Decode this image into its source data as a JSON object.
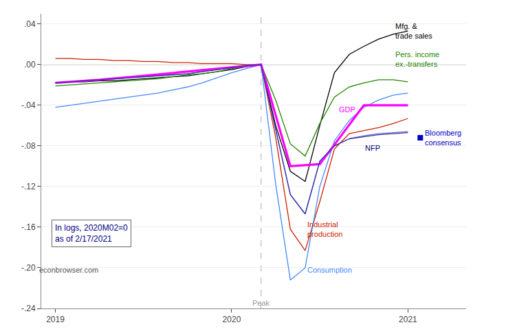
{
  "chart_data": {
    "type": "line",
    "xlim": [
      2018.92,
      2021.33
    ],
    "ylim": [
      -0.24,
      0.05
    ],
    "xticks": [
      2019.0,
      2020.0,
      2021.0
    ],
    "yticks": [
      {
        "value": 0.04,
        "label": ".04"
      },
      {
        "value": 0.0,
        "label": ".00"
      },
      {
        "value": -0.04,
        "label": "-.04"
      },
      {
        "value": -0.08,
        "label": "-.08"
      },
      {
        "value": -0.12,
        "label": "-.12"
      },
      {
        "value": -0.16,
        "label": "-.16"
      },
      {
        "value": -0.2,
        "label": "-.20"
      },
      {
        "value": -0.24,
        "label": "-.24"
      }
    ],
    "grid": "y",
    "series": [
      {
        "color": "#cc2200",
        "x": [
          2019.0,
          2019.083,
          2019.167,
          2019.25,
          2019.333,
          2019.417,
          2019.5,
          2019.583,
          2019.667,
          2019.75,
          2019.833,
          2019.917,
          2020.0,
          2020.083,
          2020.167,
          2020.25,
          2020.333,
          2020.417,
          2020.5,
          2020.583,
          2020.667,
          2020.75,
          2020.833,
          2020.917,
          2021.0
        ],
        "values": [
          0.006,
          0.006,
          0.005,
          0.005,
          0.004,
          0.004,
          0.003,
          0.003,
          0.002,
          0.002,
          0.001,
          0.001,
          0.001,
          0.0,
          0.0,
          -0.072,
          -0.162,
          -0.183,
          -0.135,
          -0.083,
          -0.068,
          -0.065,
          -0.062,
          -0.058,
          -0.053
        ]
      },
      {
        "color": "#4488ff",
        "x": [
          2019.0,
          2019.083,
          2019.167,
          2019.25,
          2019.333,
          2019.417,
          2019.5,
          2019.583,
          2019.667,
          2019.75,
          2019.833,
          2019.917,
          2020.0,
          2020.083,
          2020.167,
          2020.25,
          2020.333,
          2020.417,
          2020.5,
          2020.583,
          2020.667,
          2020.75,
          2020.833,
          2020.917,
          2021.0
        ],
        "values": [
          -0.042,
          -0.04,
          -0.038,
          -0.036,
          -0.034,
          -0.032,
          -0.03,
          -0.028,
          -0.025,
          -0.022,
          -0.018,
          -0.013,
          -0.008,
          -0.004,
          0.0,
          -0.118,
          -0.212,
          -0.2,
          -0.12,
          -0.075,
          -0.055,
          -0.042,
          -0.035,
          -0.03,
          -0.028
        ]
      },
      {
        "color": "#7070bb",
        "x": [
          2019.0,
          2019.083,
          2019.167,
          2019.25,
          2019.333,
          2019.417,
          2019.5,
          2019.583,
          2019.667,
          2019.75,
          2019.833,
          2019.917,
          2020.0,
          2020.083,
          2020.167,
          2020.25,
          2020.333,
          2020.417,
          2020.5,
          2020.583,
          2020.667,
          2020.75,
          2020.833,
          2020.917,
          2021.0
        ],
        "values": [
          -0.018,
          -0.017,
          -0.016,
          -0.015,
          -0.014,
          -0.013,
          -0.012,
          -0.011,
          -0.01,
          -0.009,
          -0.007,
          -0.005,
          -0.003,
          -0.001,
          0.0,
          -0.063,
          -0.128,
          -0.147,
          -0.095,
          -0.08,
          -0.073,
          -0.07,
          -0.068,
          -0.067,
          -0.066
        ]
      },
      {
        "color": "#000000",
        "x": [
          2019.0,
          2019.083,
          2019.167,
          2019.25,
          2019.333,
          2019.417,
          2019.5,
          2019.583,
          2019.667,
          2019.75,
          2019.833,
          2019.917,
          2020.0,
          2020.083,
          2020.167,
          2020.25,
          2020.333,
          2020.417,
          2020.5,
          2020.583,
          2020.667,
          2020.75,
          2020.833,
          2020.917,
          2021.0
        ],
        "values": [
          -0.018,
          -0.017,
          -0.017,
          -0.016,
          -0.016,
          -0.015,
          -0.014,
          -0.013,
          -0.012,
          -0.011,
          -0.009,
          -0.007,
          -0.005,
          -0.002,
          0.0,
          -0.06,
          -0.105,
          -0.115,
          -0.06,
          -0.008,
          0.01,
          0.018,
          0.025,
          0.03,
          0.033
        ]
      },
      {
        "color": "#228800",
        "x": [
          2019.0,
          2019.083,
          2019.167,
          2019.25,
          2019.333,
          2019.417,
          2019.5,
          2019.583,
          2019.667,
          2019.75,
          2019.833,
          2019.917,
          2020.0,
          2020.083,
          2020.167,
          2020.25,
          2020.333,
          2020.417,
          2020.5,
          2020.583,
          2020.667,
          2020.75,
          2020.833,
          2020.917,
          2021.0
        ],
        "values": [
          -0.021,
          -0.02,
          -0.019,
          -0.018,
          -0.017,
          -0.016,
          -0.015,
          -0.014,
          -0.012,
          -0.01,
          -0.009,
          -0.007,
          -0.004,
          -0.002,
          0.0,
          -0.035,
          -0.078,
          -0.09,
          -0.058,
          -0.032,
          -0.022,
          -0.018,
          -0.015,
          -0.015,
          -0.017
        ]
      },
      {
        "color": "#ff00ff",
        "line_style": "bold",
        "x": [
          2019.0,
          2019.25,
          2019.5,
          2019.75,
          2020.0,
          2020.167,
          2020.333,
          2020.5,
          2020.75,
          2021.0
        ],
        "values": [
          -0.018,
          -0.015,
          -0.011,
          -0.007,
          -0.003,
          0.0,
          -0.1,
          -0.098,
          -0.04,
          -0.04
        ]
      },
      {
        "color": "#3333aa",
        "x": [
          2019.0,
          2019.083,
          2019.167,
          2019.25,
          2019.333,
          2019.417,
          2019.5,
          2019.583,
          2019.667,
          2019.75,
          2019.833,
          2019.917,
          2020.0,
          2020.083,
          2020.167,
          2020.25,
          2020.333,
          2020.417,
          2020.5,
          2020.583,
          2020.667,
          2020.75,
          2020.833,
          2020.917,
          2021.0
        ],
        "values": [
          -0.018,
          -0.017,
          -0.016,
          -0.015,
          -0.014,
          -0.013,
          -0.012,
          -0.011,
          -0.01,
          -0.009,
          -0.007,
          -0.005,
          -0.003,
          -0.001,
          0.0,
          -0.063,
          -0.128,
          -0.147,
          -0.095,
          -0.08,
          -0.073,
          -0.071,
          -0.069,
          -0.068,
          -0.067
        ]
      },
      {
        "type": "scatter",
        "marker": "square",
        "color": "#0000cc",
        "x": [
          2021.07
        ],
        "values": [
          -0.072
        ]
      }
    ],
    "reference_lines": [
      {
        "axis": "x",
        "value": 2020.167,
        "label": "Peak",
        "line_style": "dashed"
      },
      {
        "axis": "y",
        "value": 0
      }
    ],
    "annotations": [
      {
        "x": 2020.92,
        "y": 0.033,
        "text": "Mfg. &\ntrade sales",
        "color": "#000000"
      },
      {
        "x": 2020.92,
        "y": 0.005,
        "text": "Pers. income\nex.-transfers",
        "color": "#228800"
      },
      {
        "x": 2020.6,
        "y": -0.044,
        "text": "GDP",
        "color": "#ff00ff"
      },
      {
        "x": 2020.42,
        "y": -0.202,
        "text": "Consumption",
        "color": "#4488ff"
      },
      {
        "x": 2020.42,
        "y": -0.162,
        "text": "Industrial\nproduction",
        "color": "#cc2200"
      },
      {
        "x": 2020.75,
        "y": -0.082,
        "text": "NFP",
        "color": "#000080"
      },
      {
        "x": 2021.09,
        "y": -0.072,
        "text": "Bloomberg\nconsensus",
        "color": "#0000cc"
      }
    ],
    "note": {
      "text": "In logs, 2020M02=0\nas of 2/17/2021",
      "color": "#000080"
    },
    "source": {
      "text": "econbrowser.com",
      "color": "#555555"
    }
  }
}
